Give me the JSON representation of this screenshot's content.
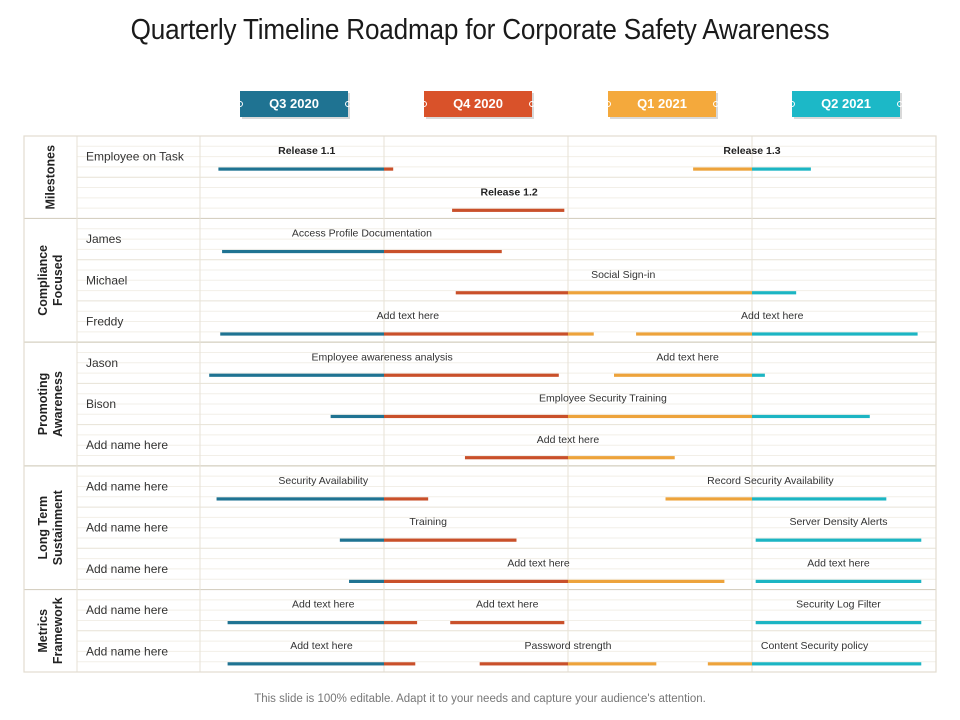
{
  "title": "Quarterly Timeline Roadmap for Corporate Safety Awareness",
  "footer": "This slide is 100% editable. Adapt it to your needs and capture your audience's attention.",
  "colors": {
    "blue": "#1f7392",
    "red": "#c9502a",
    "orange": "#eda33b",
    "teal": "#1cb5c3",
    "q3": "#1f7392",
    "q4": "#d9522a",
    "q1": "#f4a93c",
    "q2": "#1cb8c7"
  },
  "quarters": [
    {
      "label": "Q3 2020",
      "color": "#1f7392"
    },
    {
      "label": "Q4 2020",
      "color": "#d9522a"
    },
    {
      "label": "Q1 2021",
      "color": "#f4a93c"
    },
    {
      "label": "Q2 2021",
      "color": "#1cb8c7"
    }
  ],
  "categories": [
    {
      "label_lines": [
        "Milestones"
      ]
    },
    {
      "label_lines": [
        "Compliance",
        "Focused"
      ]
    },
    {
      "label_lines": [
        "Promoting",
        "Awareness"
      ]
    },
    {
      "label_lines": [
        "Long Term",
        "Sustainment"
      ]
    },
    {
      "label_lines": [
        "Metrics",
        "Framework"
      ]
    }
  ],
  "rows": [
    {
      "name": "Employee on Task",
      "tasks": [
        {
          "label": "Release 1.1",
          "bold": true,
          "start": 0.1,
          "end": 1.05,
          "label_at": 0.58
        },
        {
          "label": "Release 1.3",
          "bold": true,
          "start": 2.68,
          "end": 3.32,
          "label_at": 3.0
        }
      ]
    },
    {
      "name": "",
      "tasks": [
        {
          "label": "Release 1.2",
          "bold": true,
          "start": 1.37,
          "end": 1.98,
          "label_at": 1.68
        }
      ]
    },
    {
      "name": "James",
      "tasks": [
        {
          "label": "Access Profile Documentation",
          "bold": false,
          "start": 0.12,
          "end": 1.64,
          "label_at": 0.88
        }
      ]
    },
    {
      "name": "Michael",
      "tasks": [
        {
          "label": "Social Sign-in",
          "bold": false,
          "start": 1.39,
          "end": 3.24,
          "label_at": 2.3
        }
      ]
    },
    {
      "name": "Freddy",
      "tasks": [
        {
          "label": "Add text here",
          "bold": false,
          "start": 0.11,
          "end": 2.14,
          "label_at": 1.13
        },
        {
          "label": "Add text here",
          "bold": false,
          "start": 2.37,
          "end": 3.9,
          "label_at": 3.11
        }
      ]
    },
    {
      "name": "Jason",
      "tasks": [
        {
          "label": "Employee awareness analysis",
          "bold": false,
          "start": 0.05,
          "end": 1.95,
          "label_at": 0.99
        },
        {
          "label": "Add text here",
          "bold": false,
          "start": 2.25,
          "end": 3.07,
          "label_at": 2.65
        }
      ]
    },
    {
      "name": "Bison",
      "tasks": [
        {
          "label": "Employee Security Training",
          "bold": false,
          "start": 0.71,
          "end": 3.64,
          "label_at": 2.19
        }
      ]
    },
    {
      "name": "Add name here",
      "tasks": [
        {
          "label": "Add text here",
          "bold": false,
          "start": 1.44,
          "end": 2.58,
          "label_at": 2.0
        }
      ]
    },
    {
      "name": "Add name here",
      "tasks": [
        {
          "label": "Security Availability",
          "bold": false,
          "start": 0.09,
          "end": 1.24,
          "label_at": 0.67
        },
        {
          "label": "Record Security Availability",
          "bold": false,
          "start": 2.53,
          "end": 3.73,
          "label_at": 3.1
        }
      ]
    },
    {
      "name": "Add name here",
      "tasks": [
        {
          "label": "Training",
          "bold": false,
          "start": 0.76,
          "end": 1.72,
          "label_at": 1.24
        },
        {
          "label": "Server Density Alerts",
          "bold": false,
          "start": 3.02,
          "end": 3.92,
          "label_at": 3.47
        }
      ]
    },
    {
      "name": "Add name here",
      "tasks": [
        {
          "label": "Add text here",
          "bold": false,
          "start": 0.81,
          "end": 2.85,
          "label_at": 1.84
        },
        {
          "label": "Add text here",
          "bold": false,
          "start": 3.02,
          "end": 3.92,
          "label_at": 3.47
        }
      ]
    },
    {
      "name": "Add name here",
      "tasks": [
        {
          "label": "Add text here",
          "bold": false,
          "start": 0.15,
          "end": 1.18,
          "label_at": 0.67
        },
        {
          "label": "Add text here",
          "bold": false,
          "start": 1.36,
          "end": 1.98,
          "label_at": 1.67
        },
        {
          "label": "Security Log Filter",
          "bold": false,
          "start": 3.02,
          "end": 3.92,
          "label_at": 3.47
        }
      ]
    },
    {
      "name": "Add name here",
      "tasks": [
        {
          "label": "Add text here",
          "bold": false,
          "start": 0.15,
          "end": 1.17,
          "label_at": 0.66
        },
        {
          "label": "Password strength",
          "bold": false,
          "start": 1.52,
          "end": 2.48,
          "label_at": 2.0
        },
        {
          "label": "Content Security policy",
          "bold": false,
          "start": 2.76,
          "end": 3.92,
          "label_at": 3.34
        }
      ]
    }
  ],
  "category_rows": [
    [
      0,
      1
    ],
    [
      2,
      4
    ],
    [
      5,
      7
    ],
    [
      8,
      10
    ],
    [
      11,
      12
    ]
  ]
}
